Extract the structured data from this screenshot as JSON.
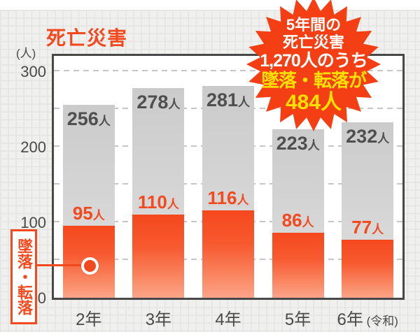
{
  "title": "死亡災害",
  "y_axis_unit": "(人)",
  "colors": {
    "accent": "#f24a1e",
    "badge": "#f43f15",
    "highlight": "#ffe100",
    "bar_total_top": "#cbcbcb",
    "bar_total_bottom": "#e3e3e2",
    "axis_ink": "#4a4a4a"
  },
  "badge": {
    "line1": "5年間の",
    "line2": "死亡災害",
    "line3": "1,270人のうち",
    "line4": "墜落・転落が",
    "line5": "484人"
  },
  "chart_data": {
    "type": "bar",
    "stacked_annotation": "orange segment is subset of total bar",
    "title": "死亡災害",
    "ylabel": "(人)",
    "unit": "人",
    "categories": [
      "2年",
      "3年",
      "4年",
      "5年",
      "6年"
    ],
    "era_suffix": "(令和)",
    "series": [
      {
        "name": "死亡災害(総数)",
        "values": [
          256,
          278,
          281,
          223,
          232
        ]
      },
      {
        "name": "墜落・転落",
        "values": [
          95,
          110,
          116,
          86,
          77
        ]
      }
    ],
    "subset": {
      "label": "墜落・転落",
      "values": [
        95,
        110,
        116,
        86,
        77
      ]
    },
    "totals": [
      256,
      278,
      281,
      223,
      232
    ],
    "five_year_total": "1,270",
    "five_year_subset_total": "484",
    "ylim": [
      0,
      300
    ],
    "yticks": [
      0,
      100,
      200,
      300
    ],
    "gridlines": [
      50,
      100,
      150,
      200,
      250,
      300
    ],
    "grid_style": "dashed",
    "legend_position": "left-callout"
  }
}
